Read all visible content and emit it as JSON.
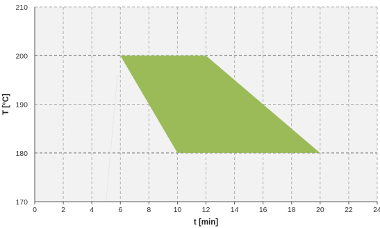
{
  "chart_data": {
    "type": "area",
    "title": "",
    "xlabel": "t [min]",
    "ylabel": "T [°C]",
    "xlim": [
      0,
      24
    ],
    "ylim": [
      170,
      210
    ],
    "x_ticks": [
      0,
      2,
      4,
      6,
      8,
      10,
      12,
      14,
      16,
      18,
      20,
      22,
      24
    ],
    "y_ticks": [
      170,
      180,
      190,
      200,
      210
    ],
    "grid": true,
    "colors": {
      "area": "#9bbb59",
      "grid": "#b0b0b0",
      "plot_bg": "#f2f2f2",
      "major_line": "#808080"
    },
    "region": {
      "points": [
        {
          "x": 6,
          "y": 200
        },
        {
          "x": 12,
          "y": 200
        },
        {
          "x": 20,
          "y": 180
        },
        {
          "x": 10,
          "y": 180
        }
      ]
    },
    "faint_line": {
      "points": [
        {
          "x": 5,
          "y": 170
        },
        {
          "x": 5.8,
          "y": 196
        }
      ]
    }
  }
}
